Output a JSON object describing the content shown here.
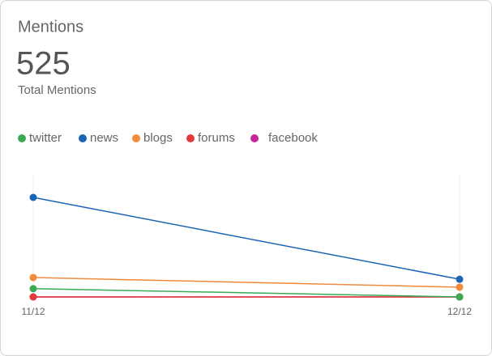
{
  "chart_data": {
    "type": "line",
    "title": "Mentions",
    "total": 525,
    "total_label": "Total Mentions",
    "categories": [
      "11/12",
      "12/12"
    ],
    "series": [
      {
        "name": "twitter",
        "color": "#3aaa55",
        "values": [
          28,
          0
        ]
      },
      {
        "name": "news",
        "color": "#1a64b4",
        "values": [
          338,
          60
        ]
      },
      {
        "name": "blogs",
        "color": "#f08a3c",
        "values": [
          66,
          33
        ]
      },
      {
        "name": "forums",
        "color": "#e23a3a",
        "values": [
          0,
          0
        ]
      },
      {
        "name": "facebook",
        "color": "#c4279c",
        "values": [
          0,
          0
        ]
      }
    ]
  }
}
